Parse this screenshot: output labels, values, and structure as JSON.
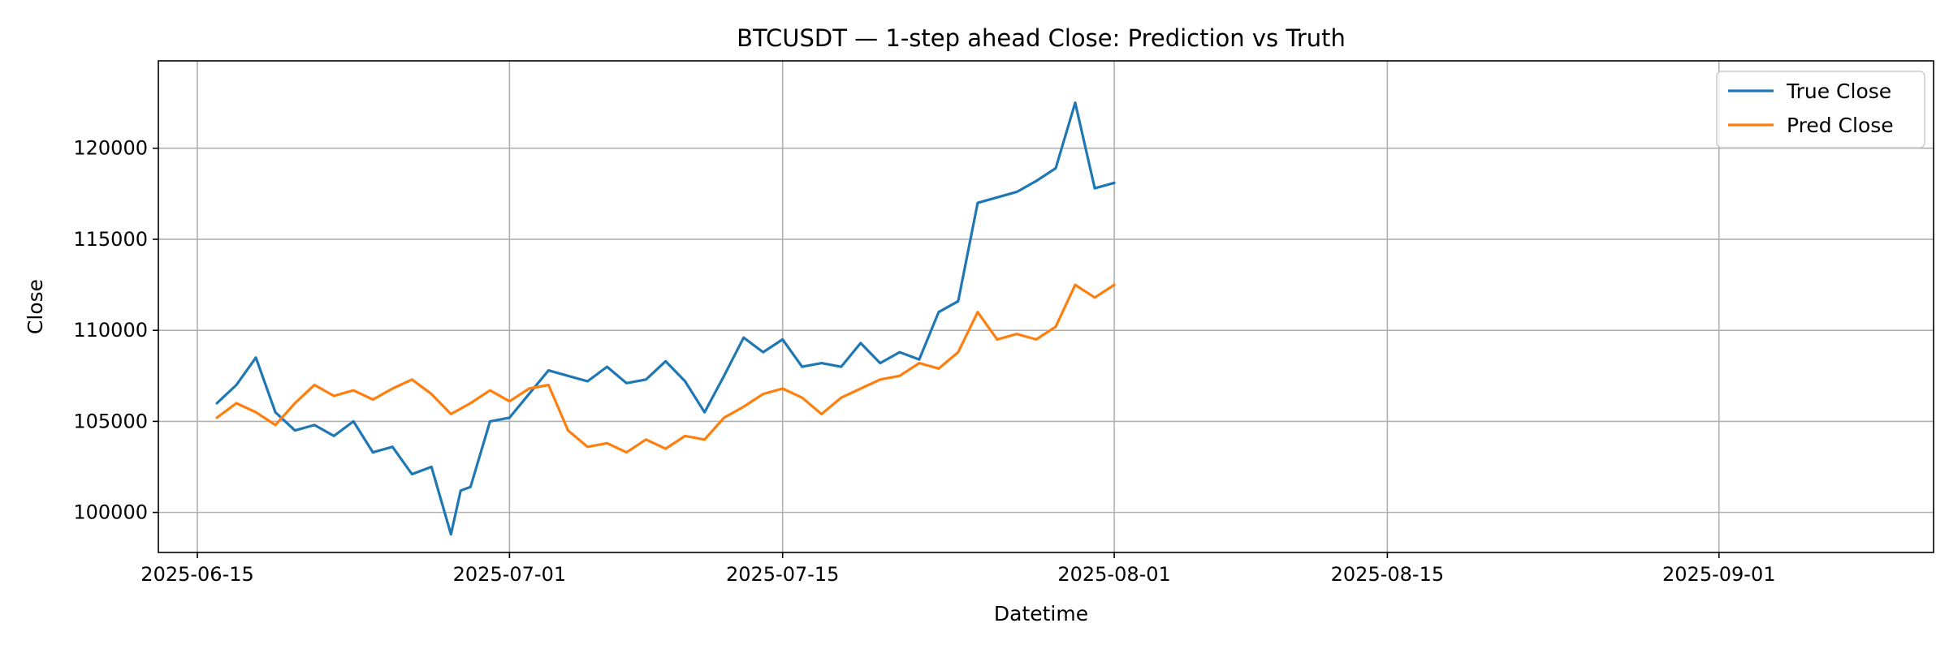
{
  "chart_data": {
    "type": "line",
    "title": "BTCUSDT — 1-step ahead Close: Prediction vs Truth",
    "xlabel": "Datetime",
    "ylabel": "Close",
    "xlim": [
      "2025-06-13",
      "2025-09-12"
    ],
    "ylim": [
      97800,
      124800
    ],
    "grid": true,
    "legend_placement": "top-right",
    "x_ticks": [
      "2025-06-15",
      "2025-07-01",
      "2025-07-15",
      "2025-08-01",
      "2025-08-15",
      "2025-09-01"
    ],
    "y_ticks": [
      100000,
      105000,
      110000,
      115000,
      120000
    ],
    "series": [
      {
        "name": "True Close",
        "color": "#1f77b4",
        "points": [
          [
            "2025-06-16",
            106000
          ],
          [
            "2025-06-17",
            107000
          ],
          [
            "2025-06-18",
            108500
          ],
          [
            "2025-06-19",
            105500
          ],
          [
            "2025-06-20",
            104500
          ],
          [
            "2025-06-21",
            104800
          ],
          [
            "2025-06-22",
            104200
          ],
          [
            "2025-06-23",
            105000
          ],
          [
            "2025-06-24",
            103300
          ],
          [
            "2025-06-25",
            103600
          ],
          [
            "2025-06-26",
            102100
          ],
          [
            "2025-06-27",
            102500
          ],
          [
            "2025-06-28",
            98800
          ],
          [
            "2025-06-28T12:00",
            101200
          ],
          [
            "2025-06-29",
            101400
          ],
          [
            "2025-06-30",
            105000
          ],
          [
            "2025-07-01",
            105200
          ],
          [
            "2025-07-02",
            106500
          ],
          [
            "2025-07-03",
            107800
          ],
          [
            "2025-07-04",
            107500
          ],
          [
            "2025-07-05",
            107200
          ],
          [
            "2025-07-06",
            108000
          ],
          [
            "2025-07-07",
            107100
          ],
          [
            "2025-07-08",
            107300
          ],
          [
            "2025-07-09",
            108300
          ],
          [
            "2025-07-10",
            107200
          ],
          [
            "2025-07-11",
            105500
          ],
          [
            "2025-07-12",
            107500
          ],
          [
            "2025-07-13",
            109600
          ],
          [
            "2025-07-14",
            108800
          ],
          [
            "2025-07-15",
            109500
          ],
          [
            "2025-07-16",
            108000
          ],
          [
            "2025-07-17",
            108200
          ],
          [
            "2025-07-18",
            108000
          ],
          [
            "2025-07-19",
            109300
          ],
          [
            "2025-07-20",
            108200
          ],
          [
            "2025-07-21",
            108800
          ],
          [
            "2025-07-22",
            108400
          ],
          [
            "2025-07-23",
            111000
          ],
          [
            "2025-07-24",
            111600
          ],
          [
            "2025-07-25",
            117000
          ],
          [
            "2025-07-26",
            117300
          ],
          [
            "2025-07-27",
            117600
          ],
          [
            "2025-07-28",
            118200
          ],
          [
            "2025-07-29",
            118900
          ],
          [
            "2025-07-30",
            122500
          ],
          [
            "2025-07-31",
            117800
          ],
          [
            "2025-08-01",
            118100
          ]
        ]
      },
      {
        "name": "Pred Close",
        "color": "#ff7f0e",
        "points": [
          [
            "2025-06-16",
            105200
          ],
          [
            "2025-06-17",
            106000
          ],
          [
            "2025-06-18",
            105500
          ],
          [
            "2025-06-19",
            104800
          ],
          [
            "2025-06-20",
            106000
          ],
          [
            "2025-06-21",
            107000
          ],
          [
            "2025-06-22",
            106400
          ],
          [
            "2025-06-23",
            106700
          ],
          [
            "2025-06-24",
            106200
          ],
          [
            "2025-06-25",
            106800
          ],
          [
            "2025-06-26",
            107300
          ],
          [
            "2025-06-27",
            106500
          ],
          [
            "2025-06-28",
            105400
          ],
          [
            "2025-06-29",
            106000
          ],
          [
            "2025-06-30",
            106700
          ],
          [
            "2025-07-01",
            106100
          ],
          [
            "2025-07-02",
            106800
          ],
          [
            "2025-07-03",
            107000
          ],
          [
            "2025-07-04",
            104500
          ],
          [
            "2025-07-05",
            103600
          ],
          [
            "2025-07-06",
            103800
          ],
          [
            "2025-07-07",
            103300
          ],
          [
            "2025-07-08",
            104000
          ],
          [
            "2025-07-09",
            103500
          ],
          [
            "2025-07-10",
            104200
          ],
          [
            "2025-07-11",
            104000
          ],
          [
            "2025-07-12",
            105200
          ],
          [
            "2025-07-13",
            105800
          ],
          [
            "2025-07-14",
            106500
          ],
          [
            "2025-07-15",
            106800
          ],
          [
            "2025-07-16",
            106300
          ],
          [
            "2025-07-17",
            105400
          ],
          [
            "2025-07-18",
            106300
          ],
          [
            "2025-07-19",
            106800
          ],
          [
            "2025-07-20",
            107300
          ],
          [
            "2025-07-21",
            107500
          ],
          [
            "2025-07-22",
            108200
          ],
          [
            "2025-07-23",
            107900
          ],
          [
            "2025-07-24",
            108800
          ],
          [
            "2025-07-25",
            111000
          ],
          [
            "2025-07-26",
            109500
          ],
          [
            "2025-07-27",
            109800
          ],
          [
            "2025-07-28",
            109500
          ],
          [
            "2025-07-29",
            110200
          ],
          [
            "2025-07-30",
            112500
          ],
          [
            "2025-07-31",
            111800
          ],
          [
            "2025-08-01",
            112500
          ]
        ]
      }
    ]
  }
}
